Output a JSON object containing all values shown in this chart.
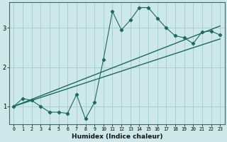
{
  "xlabel": "Humidex (Indice chaleur)",
  "bg_color": "#cde8e8",
  "line_color": "#1a6b5a",
  "grid_color": "#aacfcf",
  "xlim": [
    -0.5,
    23.5
  ],
  "ylim": [
    0.55,
    3.65
  ],
  "yticks": [
    1,
    2,
    3
  ],
  "xticks": [
    0,
    1,
    2,
    3,
    4,
    5,
    6,
    7,
    8,
    9,
    10,
    11,
    12,
    13,
    14,
    15,
    16,
    17,
    18,
    19,
    20,
    21,
    22,
    23
  ],
  "jagged_x": [
    0,
    1,
    2,
    3,
    4,
    5,
    6,
    7,
    8,
    9,
    10,
    11,
    12,
    13,
    14,
    15,
    16,
    17,
    18,
    19,
    20,
    21,
    22,
    23
  ],
  "jagged_y": [
    1.0,
    1.2,
    1.15,
    1.0,
    0.85,
    0.85,
    0.82,
    1.3,
    0.68,
    1.1,
    2.2,
    3.42,
    2.95,
    3.2,
    3.52,
    3.52,
    3.25,
    3.0,
    2.8,
    2.75,
    2.6,
    2.9,
    2.92,
    2.82
  ],
  "upper_line_x": [
    0,
    23
  ],
  "upper_line_y": [
    1.0,
    3.05
  ],
  "lower_line_x": [
    0,
    23
  ],
  "lower_line_y": [
    1.0,
    2.72
  ],
  "xlabel_fontsize": 6.5,
  "xlabel_fontweight": "bold",
  "xtick_fontsize": 4.8,
  "ytick_fontsize": 6.0,
  "marker": "D",
  "markersize": 2.2
}
